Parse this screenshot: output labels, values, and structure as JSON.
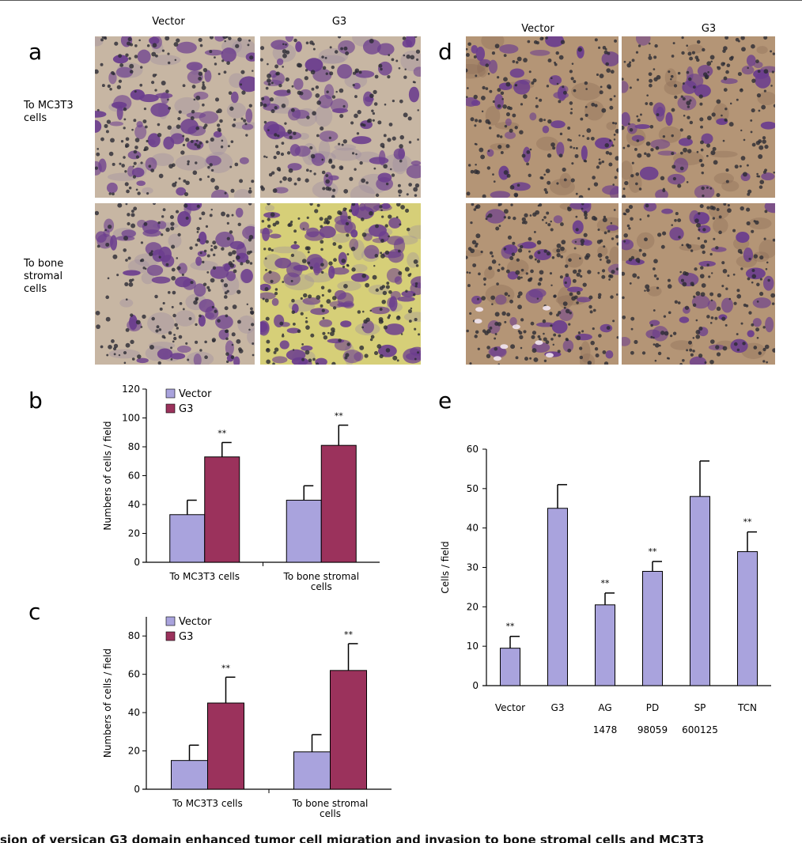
{
  "panels": {
    "a": {
      "label": "a",
      "col_headers": [
        "Vector",
        "G3"
      ],
      "row_labels": [
        [
          "To MC3T3",
          "cells"
        ],
        [
          "To bone",
          "stromal",
          "cells"
        ]
      ]
    },
    "d": {
      "label": "d",
      "col_headers": [
        "Vector",
        "G3"
      ]
    },
    "b": {
      "label": "b"
    },
    "c": {
      "label": "c"
    },
    "e": {
      "label": "e"
    }
  },
  "colors": {
    "vector": "#a9a3dd",
    "g3": "#9b325c",
    "stain_purple": "#6b3d8e",
    "stain_nuclei": "#2a2a33",
    "bg_a": "#c7b6a3",
    "bg_a_yellow": "#d6cf78",
    "bg_d": "#b49576"
  },
  "chart_data": [
    {
      "panel": "b",
      "type": "bar",
      "categories": [
        "To MC3T3 cells",
        [
          "To bone stromal",
          "cells"
        ]
      ],
      "series": [
        {
          "name": "Vector",
          "values": [
            33,
            43
          ],
          "errors": [
            10,
            10
          ]
        },
        {
          "name": "G3",
          "values": [
            73,
            81
          ],
          "errors": [
            10,
            14
          ]
        }
      ],
      "significance": [
        [
          "",
          ""
        ],
        [
          "**",
          "**"
        ]
      ],
      "ylabel": "Numbers of cells / field",
      "ylim": [
        0,
        120
      ],
      "yticks": [
        0,
        20,
        40,
        60,
        80,
        100,
        120
      ],
      "legend": "top-left"
    },
    {
      "panel": "c",
      "type": "bar",
      "categories": [
        "To MC3T3 cells",
        [
          "To bone stromal",
          "cells"
        ]
      ],
      "series": [
        {
          "name": "Vector",
          "values": [
            15,
            19.5
          ],
          "errors": [
            8,
            9
          ]
        },
        {
          "name": "G3",
          "values": [
            45,
            62
          ],
          "errors": [
            13.5,
            14
          ]
        }
      ],
      "significance": [
        [
          "",
          ""
        ],
        [
          "**",
          "**"
        ]
      ],
      "ylabel": "Numbers of cells / field",
      "ylim": [
        0,
        90
      ],
      "yticks": [
        0,
        20,
        40,
        60,
        80
      ],
      "legend": "top-left"
    },
    {
      "panel": "e",
      "type": "bar",
      "categories": [
        [
          "Vector"
        ],
        [
          "G3"
        ],
        [
          "AG",
          "1478"
        ],
        [
          "PD",
          "98059"
        ],
        [
          "SP",
          "600125"
        ],
        [
          "TCN"
        ]
      ],
      "series": [
        {
          "name": "",
          "values": [
            9.5,
            45,
            20.5,
            29,
            48,
            34
          ],
          "errors": [
            3,
            6,
            3,
            2.5,
            9,
            5
          ]
        }
      ],
      "significance": [
        "**",
        "",
        "**",
        "**",
        "",
        "**"
      ],
      "ylabel": "Cells / field",
      "ylim": [
        0,
        60
      ],
      "yticks": [
        0,
        10,
        20,
        30,
        40,
        50,
        60
      ]
    }
  ],
  "caption": "sion of versican G3 domain enhanced tumor cell migration and invasion to bone stromal cells and MC3T3"
}
